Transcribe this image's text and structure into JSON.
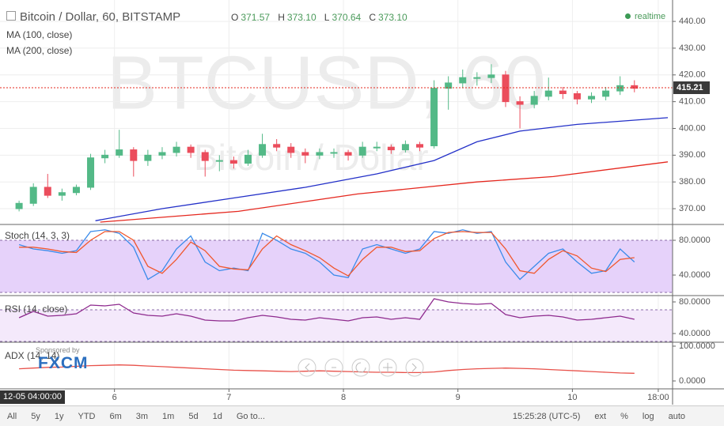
{
  "header": {
    "title": "Bitcoin / Dollar, 60, BITSTAMP",
    "ohlc_letters": [
      "O",
      "H",
      "L",
      "C"
    ],
    "ohlc_values": [
      "371.57",
      "373.10",
      "370.64",
      "373.10"
    ],
    "realtime": "realtime",
    "crosshair_label": "12-05 04:00:00",
    "sponsor_caption": "Sponsored by",
    "sponsor": "FXCM"
  },
  "toolbar": {
    "ranges": [
      "All",
      "5y",
      "1y",
      "YTD",
      "6m",
      "3m",
      "1m",
      "5d",
      "1d",
      "Go to..."
    ],
    "clock": "15:25:28 (UTC-5)",
    "options": [
      "ext",
      "%",
      "log",
      "auto"
    ]
  },
  "chart_data": [
    {
      "type": "candlestick",
      "watermark": [
        "BTCUSD, 60",
        "Bitcoin / Dollar"
      ],
      "x": [
        0,
        3,
        6,
        9,
        12,
        15,
        18,
        21,
        24,
        27,
        30,
        33,
        36,
        39,
        42,
        45,
        48,
        51,
        54,
        57,
        60,
        63,
        66,
        69,
        72,
        75,
        78,
        81,
        84,
        87,
        90,
        93,
        96,
        99,
        102,
        105,
        108,
        111,
        114,
        117,
        120,
        123,
        126,
        129
      ],
      "open": [
        370,
        372,
        378,
        375,
        376,
        378,
        389,
        390,
        392,
        388,
        390,
        391,
        393,
        391,
        388,
        388,
        387,
        390,
        394,
        393,
        391,
        390,
        391,
        391,
        390,
        393,
        393,
        392,
        394,
        393.5,
        415,
        417,
        419,
        419,
        420,
        410,
        409,
        412,
        414,
        413,
        411,
        412,
        414,
        416
      ],
      "high": [
        373,
        379.5,
        383,
        377.5,
        379,
        390.5,
        392,
        399.5,
        393,
        392,
        393,
        395,
        394,
        392,
        390,
        389.5,
        392,
        398,
        396,
        394.5,
        392.5,
        392.5,
        392.5,
        392,
        395,
        395,
        394,
        395.5,
        395,
        418,
        419.5,
        422,
        421,
        424,
        421.5,
        412,
        414,
        419,
        415.5,
        414,
        413.5,
        415.5,
        419.5,
        418
      ],
      "low": [
        369,
        371,
        374,
        373,
        375,
        377,
        387,
        389,
        382,
        386,
        388.5,
        389.5,
        389,
        382,
        384,
        385,
        386,
        389,
        391.5,
        389,
        387,
        388.5,
        389,
        388,
        389,
        391.5,
        390.5,
        391,
        391.5,
        392.5,
        407,
        415,
        416,
        417,
        408,
        400,
        407.5,
        410.5,
        411,
        409,
        409.5,
        410.5,
        412.5,
        413.5
      ],
      "close": [
        372,
        378,
        375,
        376,
        378,
        389,
        390,
        392,
        388,
        390,
        391,
        393,
        391,
        388,
        388,
        387,
        390,
        394,
        393,
        391,
        390,
        391,
        391,
        390,
        393,
        393,
        392,
        394,
        393,
        415,
        417,
        419,
        419,
        420,
        410,
        409,
        412,
        414,
        413,
        411,
        412,
        414,
        416,
        415
      ],
      "color_up": "#53b987",
      "color_down": "#eb4d5c",
      "series": [
        {
          "name": "MA (100, close)",
          "color": "#2330c8",
          "x": [
            16,
            30,
            45,
            60,
            75,
            87,
            96,
            105,
            117,
            136
          ],
          "values": [
            365.5,
            370,
            374,
            378,
            383,
            388,
            395,
            399,
            401.5,
            404
          ]
        },
        {
          "name": "MA (200, close)",
          "color": "#e5281f",
          "x": [
            17,
            46,
            71,
            96,
            112,
            136
          ],
          "values": [
            365,
            369,
            375.5,
            380,
            382,
            387.5
          ]
        }
      ],
      "last_price": {
        "value": 415.21,
        "label": "415.21"
      },
      "xlim": [
        -4,
        137
      ],
      "xticks": [
        {
          "value": 20,
          "label": "6"
        },
        {
          "value": 44,
          "label": "7"
        },
        {
          "value": 68,
          "label": "8"
        },
        {
          "value": 92,
          "label": "9"
        },
        {
          "value": 116,
          "label": "10"
        },
        {
          "value": 134,
          "label": "18:00"
        }
      ],
      "ylim": [
        364.4,
        448
      ],
      "yticks": [
        {
          "value": 370,
          "label": "370.00"
        },
        {
          "value": 380,
          "label": "380.00"
        },
        {
          "value": 390,
          "label": "390.00"
        },
        {
          "value": 400,
          "label": "400.00"
        },
        {
          "value": 410,
          "label": "410.00"
        },
        {
          "value": 420,
          "label": "420.00"
        },
        {
          "value": 430,
          "label": "430.00"
        },
        {
          "value": 440,
          "label": "440.00"
        }
      ],
      "grid": true
    },
    {
      "type": "line",
      "title": "Stoch (14, 3, 3)",
      "x": [
        0,
        3,
        6,
        9,
        12,
        15,
        18,
        21,
        24,
        27,
        30,
        33,
        36,
        39,
        42,
        45,
        48,
        51,
        54,
        57,
        60,
        63,
        66,
        69,
        72,
        75,
        78,
        81,
        84,
        87,
        90,
        93,
        96,
        99,
        102,
        105,
        108,
        111,
        114,
        117,
        120,
        123,
        126,
        129
      ],
      "series": [
        {
          "color": "#3b8bea",
          "values": [
            75,
            70,
            68,
            65,
            68,
            90,
            92,
            88,
            72,
            35,
            45,
            70,
            85,
            55,
            45,
            48,
            45,
            88,
            80,
            70,
            65,
            55,
            40,
            37,
            70,
            75,
            70,
            65,
            70,
            90,
            88,
            92,
            88,
            90,
            55,
            35,
            50,
            65,
            70,
            55,
            42,
            45,
            70,
            55
          ]
        },
        {
          "color": "#f0572d",
          "values": [
            72,
            72,
            70,
            67,
            66,
            80,
            90,
            90,
            80,
            50,
            42,
            58,
            78,
            68,
            50,
            47,
            46,
            70,
            85,
            75,
            68,
            60,
            48,
            39,
            58,
            72,
            72,
            67,
            68,
            82,
            89,
            90,
            89,
            89,
            70,
            45,
            42,
            58,
            68,
            62,
            48,
            44,
            58,
            60
          ]
        }
      ],
      "band": [
        20,
        80
      ],
      "band_color": "#e6d2fa",
      "ylim": [
        17.3,
        97.3
      ],
      "yticks": [
        {
          "value": 80,
          "label": "80.0000"
        },
        {
          "value": 40,
          "label": "40.0000"
        }
      ],
      "grid": false
    },
    {
      "type": "line",
      "title": "RSI (14, close)",
      "x": [
        0,
        3,
        6,
        9,
        12,
        15,
        18,
        21,
        24,
        27,
        30,
        33,
        36,
        39,
        42,
        45,
        48,
        51,
        54,
        57,
        60,
        63,
        66,
        69,
        72,
        75,
        78,
        81,
        84,
        87,
        90,
        93,
        96,
        99,
        102,
        105,
        108,
        111,
        114,
        117,
        120,
        123,
        126,
        129
      ],
      "series": [
        {
          "color": "#8e2a8e",
          "values": [
            60,
            68,
            62,
            63,
            65,
            76,
            75,
            77,
            66,
            63,
            62,
            65,
            62,
            57,
            56,
            56,
            60,
            63,
            61,
            58,
            57,
            60,
            58,
            56,
            60,
            61,
            58,
            60,
            58,
            84,
            80,
            78,
            77,
            78,
            64,
            60,
            62,
            63,
            61,
            57,
            58,
            60,
            62,
            58
          ]
        }
      ],
      "band": [
        30,
        70
      ],
      "band_color": "#f4e9fb",
      "ylim": [
        30,
        87
      ],
      "yticks": [
        {
          "value": 80,
          "label": "80.0000"
        },
        {
          "value": 40,
          "label": "40.0000"
        }
      ],
      "grid": false
    },
    {
      "type": "line",
      "title": "ADX (14, 14)",
      "x": [
        0,
        3,
        6,
        9,
        12,
        15,
        18,
        21,
        24,
        27,
        30,
        33,
        36,
        39,
        42,
        45,
        48,
        51,
        54,
        57,
        60,
        63,
        66,
        69,
        72,
        75,
        78,
        81,
        84,
        87,
        90,
        93,
        96,
        99,
        102,
        105,
        108,
        111,
        114,
        117,
        120,
        123,
        126,
        129
      ],
      "series": [
        {
          "color": "#e8514a",
          "values": [
            35,
            37,
            39,
            40,
            42,
            44,
            45,
            46,
            45,
            43,
            41,
            39,
            37,
            35,
            33,
            31,
            30,
            29,
            28,
            27,
            28,
            29,
            28,
            27,
            26,
            25,
            25,
            24,
            24,
            26,
            30,
            33,
            35,
            36,
            37,
            36,
            35,
            33,
            31,
            29,
            27,
            25,
            23,
            22
          ]
        }
      ],
      "ylim": [
        -22.7,
        109
      ],
      "yticks": [
        {
          "value": 100,
          "label": "100.0000"
        },
        {
          "value": 0,
          "label": "0.0000"
        }
      ],
      "grid": false
    }
  ]
}
